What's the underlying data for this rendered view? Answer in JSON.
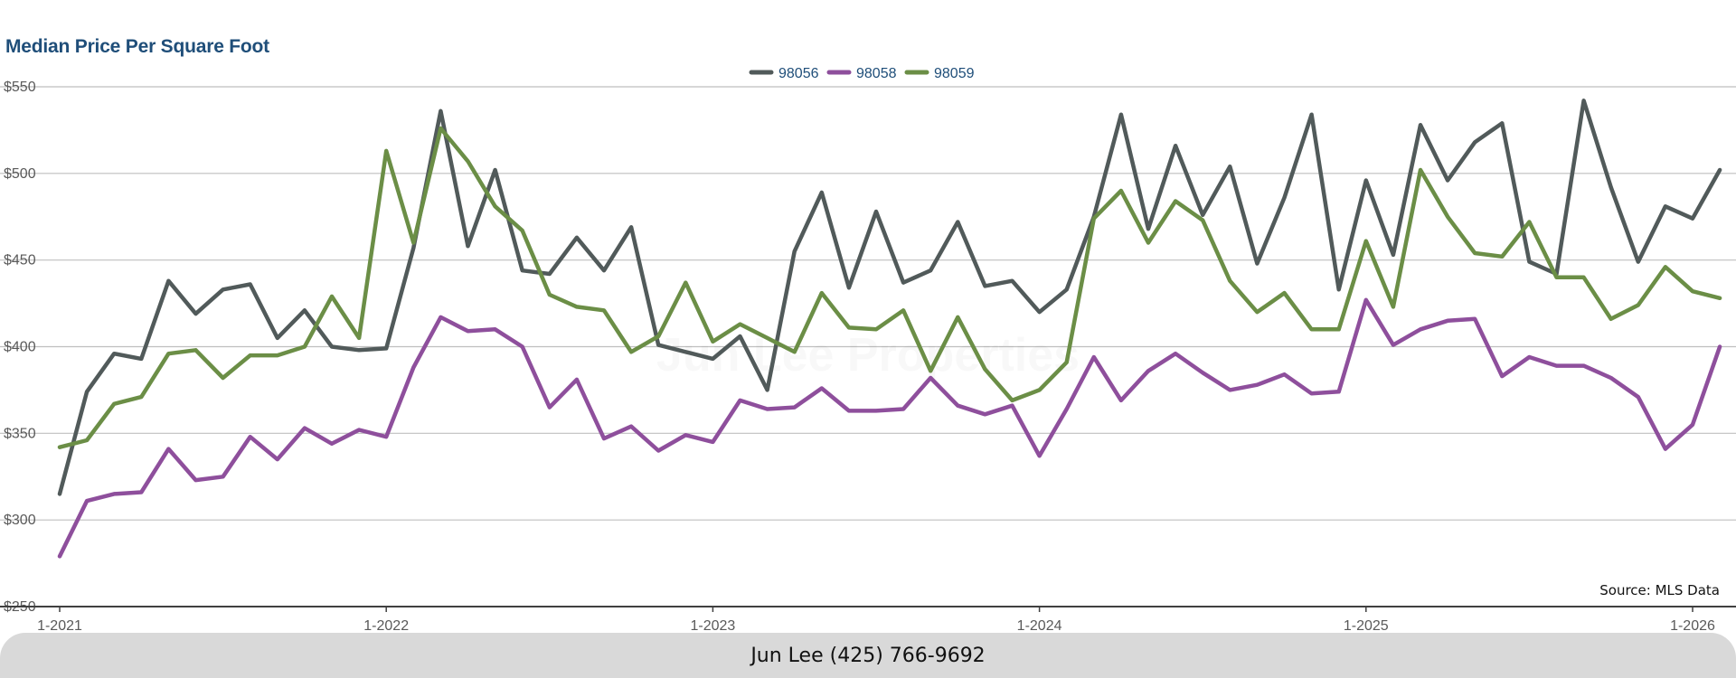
{
  "title": "Median Price Per Square Foot",
  "source": "Source: MLS Data",
  "watermark": "Jun Lee Properties",
  "footer": "Jun Lee (425) 766-9692",
  "chart_data": {
    "type": "line",
    "title": "Median Price Per Square Foot",
    "xlabel": "",
    "ylabel": "",
    "ylim": [
      250,
      550
    ],
    "yticks": [
      250,
      300,
      350,
      400,
      450,
      500,
      550
    ],
    "ytick_labels": [
      "$250",
      "$300",
      "$350",
      "$400",
      "$450",
      "$500",
      "$550"
    ],
    "xticks": [
      0,
      12,
      24,
      36,
      48,
      60
    ],
    "xtick_labels": [
      "1-2021",
      "1-2022",
      "1-2023",
      "1-2024",
      "1-2025",
      "1-2026"
    ],
    "x_start": "2021-01",
    "x_end": "2026-02",
    "legend_position": "top-center",
    "grid": "horizontal",
    "series": [
      {
        "name": "98056",
        "color": "#515a5a",
        "values": [
          315,
          374,
          396,
          393,
          438,
          419,
          433,
          436,
          405,
          421,
          400,
          398,
          399,
          457,
          536,
          458,
          502,
          444,
          442,
          463,
          444,
          469,
          401,
          397,
          393,
          406,
          375,
          455,
          489,
          434,
          478,
          437,
          444,
          472,
          435,
          438,
          420,
          433,
          475,
          534,
          468,
          516,
          476,
          504,
          448,
          486,
          534,
          433,
          496,
          453,
          528,
          496,
          518,
          529,
          449,
          442,
          542,
          492,
          449,
          481,
          474,
          502
        ]
      },
      {
        "name": "98058",
        "color": "#8e4f9c",
        "values": [
          279,
          311,
          315,
          316,
          341,
          323,
          325,
          348,
          335,
          353,
          344,
          352,
          348,
          388,
          417,
          409,
          410,
          400,
          365,
          381,
          347,
          354,
          340,
          349,
          345,
          369,
          364,
          365,
          376,
          363,
          363,
          364,
          382,
          366,
          361,
          366,
          337,
          364,
          394,
          369,
          386,
          396,
          385,
          375,
          378,
          384,
          373,
          374,
          427,
          401,
          410,
          415,
          416,
          383,
          394,
          389,
          389,
          382,
          371,
          341,
          355,
          400
        ]
      },
      {
        "name": "98059",
        "color": "#6b8e46",
        "values": [
          342,
          346,
          367,
          371,
          396,
          398,
          382,
          395,
          395,
          400,
          429,
          405,
          513,
          460,
          526,
          507,
          481,
          467,
          430,
          423,
          421,
          397,
          406,
          437,
          403,
          413,
          405,
          397,
          431,
          411,
          410,
          421,
          386,
          417,
          387,
          369,
          375,
          391,
          474,
          490,
          460,
          484,
          473,
          438,
          420,
          431,
          410,
          410,
          461,
          423,
          502,
          475,
          454,
          452,
          472,
          440,
          440,
          416,
          424,
          446,
          432,
          428
        ]
      }
    ]
  }
}
